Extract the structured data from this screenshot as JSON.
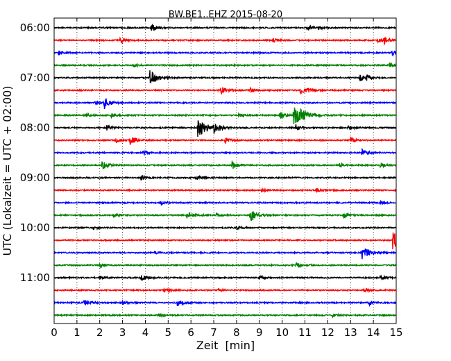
{
  "chart_data": {
    "type": "line",
    "title": "BW.BE1..EHZ 2015-08-20",
    "xlabel": "Zeit  [min]",
    "ylabel": "UTC (Lokalzeit = UTC + 02:00)",
    "xlim": [
      0,
      15
    ],
    "x_ticks": [
      0,
      1,
      2,
      3,
      4,
      5,
      6,
      7,
      8,
      9,
      10,
      11,
      12,
      13,
      14,
      15
    ],
    "x_tick_labels": [
      "0",
      "1",
      "2",
      "3",
      "4",
      "5",
      "6",
      "7",
      "8",
      "9",
      "10",
      "11",
      "12",
      "13",
      "14",
      "15"
    ],
    "y_tick_labels": [
      "06:00",
      "07:00",
      "08:00",
      "09:00",
      "10:00",
      "11:00"
    ],
    "grid": "vertical dotted",
    "colors": [
      "#000000",
      "#ff0000",
      "#0000ff",
      "#008000"
    ],
    "series": [
      {
        "start": "06:00",
        "color": "#000000",
        "events": [
          {
            "t": 4.25,
            "amp": 0.45
          },
          {
            "t": 11.1,
            "amp": 0.25
          },
          {
            "t": 11.6,
            "amp": 0.2
          }
        ]
      },
      {
        "start": "06:15",
        "color": "#ff0000",
        "events": [
          {
            "t": 2.9,
            "amp": 0.3
          },
          {
            "t": 9.6,
            "amp": 0.3
          },
          {
            "t": 14.2,
            "amp": 0.25
          },
          {
            "t": 14.45,
            "amp": 0.35
          }
        ]
      },
      {
        "start": "06:30",
        "color": "#0000ff",
        "events": [
          {
            "t": 0.2,
            "amp": 0.25
          },
          {
            "t": 14.8,
            "amp": 0.3
          }
        ]
      },
      {
        "start": "06:45",
        "color": "#008000",
        "events": [
          {
            "t": 3.5,
            "amp": 0.2
          },
          {
            "t": 14.7,
            "amp": 0.2
          }
        ]
      },
      {
        "start": "07:00",
        "color": "#000000",
        "events": [
          {
            "t": 4.2,
            "amp": 0.85
          },
          {
            "t": 13.4,
            "amp": 0.4
          },
          {
            "t": 13.7,
            "amp": 0.3
          }
        ]
      },
      {
        "start": "07:15",
        "color": "#ff0000",
        "events": [
          {
            "t": 7.3,
            "amp": 0.4
          },
          {
            "t": 8.6,
            "amp": 0.25
          },
          {
            "t": 10.8,
            "amp": 0.35
          },
          {
            "t": 11.1,
            "amp": 0.2
          }
        ]
      },
      {
        "start": "07:30",
        "color": "#0000ff",
        "events": [
          {
            "t": 2.2,
            "amp": 0.55
          },
          {
            "t": 1.8,
            "amp": 0.15
          }
        ]
      },
      {
        "start": "07:45",
        "color": "#008000",
        "events": [
          {
            "t": 10.5,
            "amp": 1.3
          },
          {
            "t": 9.9,
            "amp": 0.35
          },
          {
            "t": 1.4,
            "amp": 0.2
          },
          {
            "t": 2.5,
            "amp": 0.2
          },
          {
            "t": 8.1,
            "amp": 0.2
          }
        ]
      },
      {
        "start": "08:00",
        "color": "#000000",
        "events": [
          {
            "t": 6.3,
            "amp": 1.1
          },
          {
            "t": 7.0,
            "amp": 0.5
          },
          {
            "t": 2.3,
            "amp": 0.3
          },
          {
            "t": 10.6,
            "amp": 0.3
          },
          {
            "t": 12.9,
            "amp": 0.25
          }
        ]
      },
      {
        "start": "08:15",
        "color": "#ff0000",
        "events": [
          {
            "t": 3.3,
            "amp": 0.5
          },
          {
            "t": 2.7,
            "amp": 0.3
          },
          {
            "t": 7.5,
            "amp": 0.3
          },
          {
            "t": 13.0,
            "amp": 0.3
          }
        ]
      },
      {
        "start": "08:30",
        "color": "#0000ff",
        "events": [
          {
            "t": 13.5,
            "amp": 0.35
          },
          {
            "t": 3.9,
            "amp": 0.2
          }
        ]
      },
      {
        "start": "08:45",
        "color": "#008000",
        "events": [
          {
            "t": 2.1,
            "amp": 0.45
          },
          {
            "t": 7.8,
            "amp": 0.4
          },
          {
            "t": 14.3,
            "amp": 0.25
          },
          {
            "t": 12.5,
            "amp": 0.2
          }
        ]
      },
      {
        "start": "09:00",
        "color": "#000000",
        "events": [
          {
            "t": 6.2,
            "amp": 0.3
          },
          {
            "t": 3.8,
            "amp": 0.25
          }
        ]
      },
      {
        "start": "09:15",
        "color": "#ff0000",
        "events": [
          {
            "t": 9.1,
            "amp": 0.2
          },
          {
            "t": 11.5,
            "amp": 0.2
          }
        ]
      },
      {
        "start": "09:30",
        "color": "#0000ff",
        "events": [
          {
            "t": 4.7,
            "amp": 0.2
          },
          {
            "t": 14.3,
            "amp": 0.2
          }
        ]
      },
      {
        "start": "09:45",
        "color": "#008000",
        "events": [
          {
            "t": 8.6,
            "amp": 0.7
          },
          {
            "t": 5.8,
            "amp": 0.45
          },
          {
            "t": 2.6,
            "amp": 0.2
          },
          {
            "t": 12.7,
            "amp": 0.3
          },
          {
            "t": 7.1,
            "amp": 0.2
          }
        ]
      },
      {
        "start": "10:00",
        "color": "#000000",
        "events": [
          {
            "t": 8.0,
            "amp": 0.2
          },
          {
            "t": 1.7,
            "amp": 0.2
          }
        ]
      },
      {
        "start": "10:15",
        "color": "#ff0000",
        "events": [
          {
            "t": 14.85,
            "amp": 1.1
          }
        ]
      },
      {
        "start": "10:30",
        "color": "#0000ff",
        "events": [
          {
            "t": 13.5,
            "amp": 0.75
          },
          {
            "t": 4.4,
            "amp": 0.2
          }
        ]
      },
      {
        "start": "10:45",
        "color": "#008000",
        "events": [
          {
            "t": 10.6,
            "amp": 0.35
          },
          {
            "t": 2.0,
            "amp": 0.2
          }
        ]
      },
      {
        "start": "11:00",
        "color": "#000000",
        "events": [
          {
            "t": 3.8,
            "amp": 0.35
          },
          {
            "t": 14.3,
            "amp": 0.3
          },
          {
            "t": 2.0,
            "amp": 0.2
          },
          {
            "t": 9.0,
            "amp": 0.2
          }
        ]
      },
      {
        "start": "11:15",
        "color": "#ff0000",
        "events": [
          {
            "t": 4.8,
            "amp": 0.25
          },
          {
            "t": 7.2,
            "amp": 0.2
          },
          {
            "t": 13.6,
            "amp": 0.2
          }
        ]
      },
      {
        "start": "11:30",
        "color": "#0000ff",
        "events": [
          {
            "t": 1.3,
            "amp": 0.35
          },
          {
            "t": 3.0,
            "amp": 0.25
          },
          {
            "t": 5.4,
            "amp": 0.4
          },
          {
            "t": 13.8,
            "amp": 0.25
          }
        ]
      },
      {
        "start": "11:45",
        "color": "#008000",
        "events": [
          {
            "t": 4.6,
            "amp": 0.2
          },
          {
            "t": 12.2,
            "amp": 0.2
          }
        ]
      }
    ]
  }
}
